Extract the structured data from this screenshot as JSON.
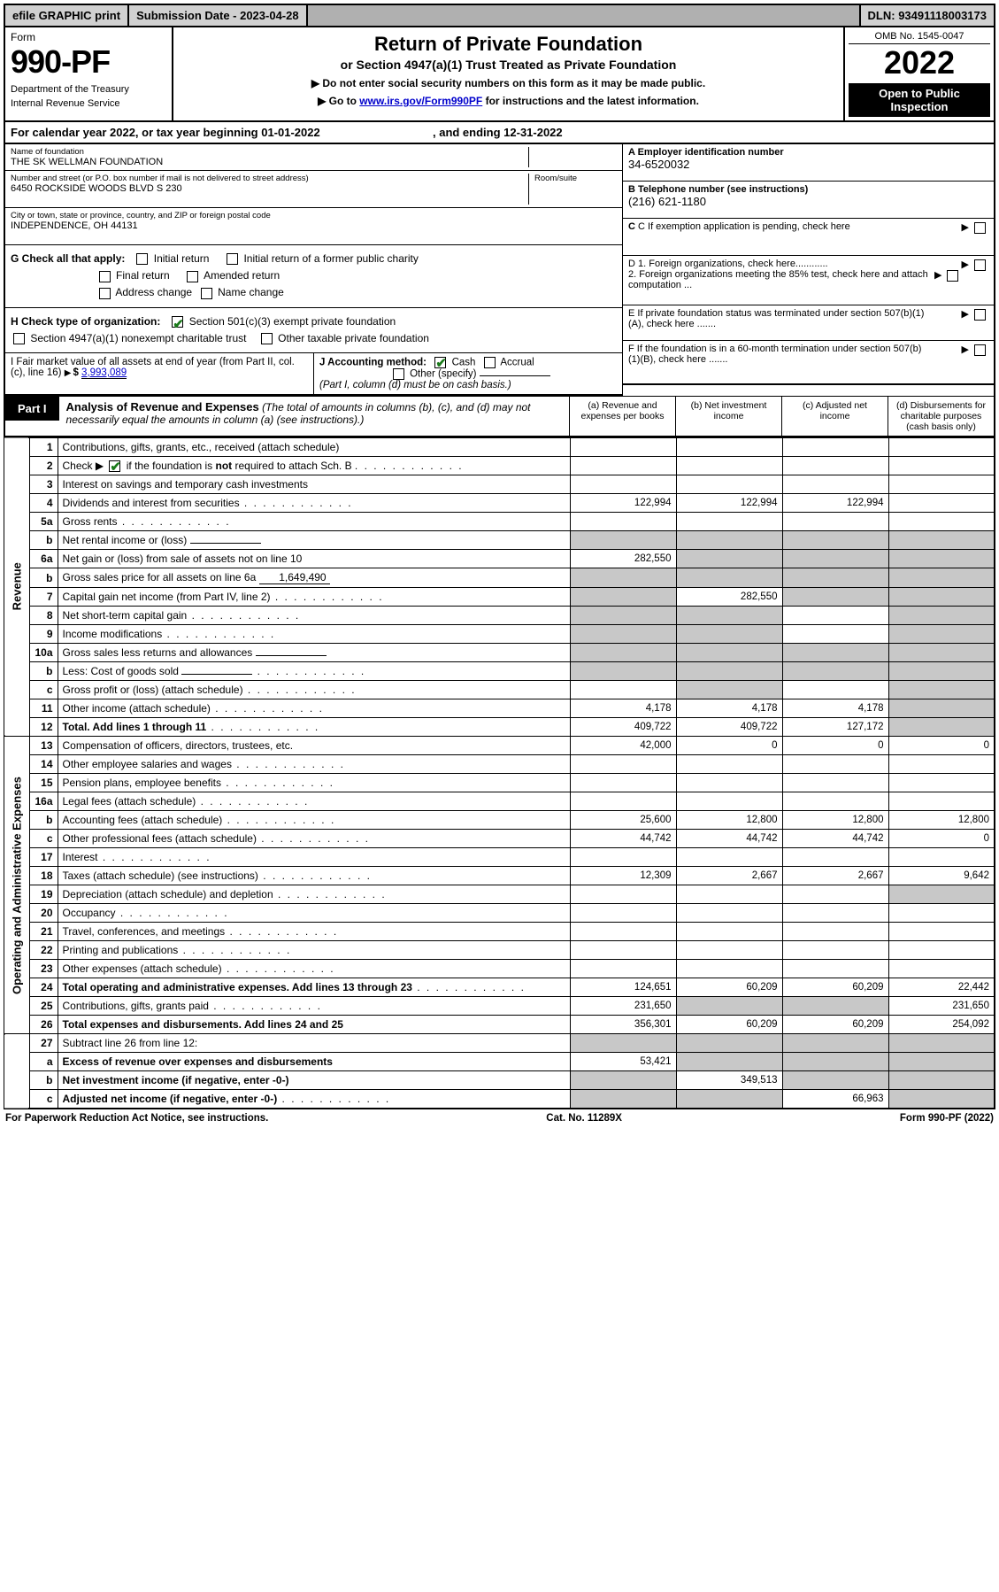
{
  "topbar": {
    "efile": "efile GRAPHIC print",
    "sub_date_label": "Submission Date - 2023-04-28",
    "dln": "DLN: 93491118003173"
  },
  "header": {
    "form_word": "Form",
    "form_no": "990-PF",
    "dept": "Department of the Treasury",
    "irs": "Internal Revenue Service",
    "title": "Return of Private Foundation",
    "subtitle": "or Section 4947(a)(1) Trust Treated as Private Foundation",
    "note1": "▶ Do not enter social security numbers on this form as it may be made public.",
    "note2a": "▶ Go to ",
    "note2_link": "www.irs.gov/Form990PF",
    "note2b": " for instructions and the latest information.",
    "omb": "OMB No. 1545-0047",
    "year": "2022",
    "open": "Open to Public Inspection"
  },
  "calyear": {
    "text_a": "For calendar year 2022, or tax year beginning 01-01-2022",
    "text_b": ", and ending 12-31-2022"
  },
  "id": {
    "name_lbl": "Name of foundation",
    "name": "THE SK WELLMAN FOUNDATION",
    "addr_lbl": "Number and street (or P.O. box number if mail is not delivered to street address)",
    "addr": "6450 ROCKSIDE WOODS BLVD S 230",
    "room_lbl": "Room/suite",
    "city_lbl": "City or town, state or province, country, and ZIP or foreign postal code",
    "city": "INDEPENDENCE, OH  44131",
    "ein_lbl": "A Employer identification number",
    "ein": "34-6520032",
    "tel_lbl": "B Telephone number (see instructions)",
    "tel": "(216) 621-1180",
    "c_lbl": "C If exemption application is pending, check here",
    "d1": "D 1. Foreign organizations, check here............",
    "d2": "2. Foreign organizations meeting the 85% test, check here and attach computation ...",
    "e": "E  If private foundation status was terminated under section 507(b)(1)(A), check here .......",
    "f": "F  If the foundation is in a 60-month termination under section 507(b)(1)(B), check here .......",
    "g_lbl": "G Check all that apply:",
    "g_opts": [
      "Initial return",
      "Final return",
      "Address change",
      "Initial return of a former public charity",
      "Amended return",
      "Name change"
    ],
    "h_lbl": "H Check type of organization:",
    "h_opts": [
      "Section 501(c)(3) exempt private foundation",
      "Section 4947(a)(1) nonexempt charitable trust",
      "Other taxable private foundation"
    ],
    "i_lbl": "I Fair market value of all assets at end of year (from Part II, col. (c), line 16)",
    "i_val": "3,993,089",
    "j_lbl": "J Accounting method:",
    "j_cash": "Cash",
    "j_accr": "Accrual",
    "j_other": "Other (specify)",
    "j_note": "(Part I, column (d) must be on cash basis.)"
  },
  "part1": {
    "tab": "Part I",
    "title": "Analysis of Revenue and Expenses",
    "title_note": "(The total of amounts in columns (b), (c), and (d) may not necessarily equal the amounts in column (a) (see instructions).)",
    "col_a": "(a)   Revenue and expenses per books",
    "col_b": "(b)   Net investment income",
    "col_c": "(c)  Adjusted net income",
    "col_d": "(d)   Disbursements for charitable purposes (cash basis only)",
    "side_rev": "Revenue",
    "side_exp": "Operating and Administrative Expenses"
  },
  "rows": [
    {
      "ln": "1",
      "desc": "Contributions, gifts, grants, etc., received (attach schedule)",
      "a": "",
      "b": "",
      "c": "",
      "d": ""
    },
    {
      "ln": "2",
      "desc": "Check ▶ ☑ if the foundation is not required to attach Sch. B",
      "a": "",
      "b": "",
      "c": "",
      "d": "",
      "dots": true
    },
    {
      "ln": "3",
      "desc": "Interest on savings and temporary cash investments",
      "a": "",
      "b": "",
      "c": "",
      "d": ""
    },
    {
      "ln": "4",
      "desc": "Dividends and interest from securities",
      "a": "122,994",
      "b": "122,994",
      "c": "122,994",
      "d": "",
      "dots": true
    },
    {
      "ln": "5a",
      "desc": "Gross rents",
      "a": "",
      "b": "",
      "c": "",
      "d": "",
      "dots": true
    },
    {
      "ln": "b",
      "desc": "Net rental income or (loss)",
      "a": "",
      "b": "",
      "c": "",
      "d": "",
      "inline": true,
      "shadeA": true,
      "shadeB": true,
      "shadeC": true,
      "shadeD": true
    },
    {
      "ln": "6a",
      "desc": "Net gain or (loss) from sale of assets not on line 10",
      "a": "282,550",
      "b": "",
      "c": "",
      "d": "",
      "shadeB": true,
      "shadeC": true,
      "shadeD": true
    },
    {
      "ln": "b",
      "desc": "Gross sales price for all assets on line 6a",
      "a": "",
      "b": "",
      "c": "",
      "d": "",
      "inline": true,
      "inlineval": "1,649,490",
      "shadeA": true,
      "shadeB": true,
      "shadeC": true,
      "shadeD": true
    },
    {
      "ln": "7",
      "desc": "Capital gain net income (from Part IV, line 2)",
      "a": "",
      "b": "282,550",
      "c": "",
      "d": "",
      "dots": true,
      "shadeA": true,
      "shadeC": true,
      "shadeD": true
    },
    {
      "ln": "8",
      "desc": "Net short-term capital gain",
      "a": "",
      "b": "",
      "c": "",
      "d": "",
      "dots": true,
      "shadeA": true,
      "shadeB": true,
      "shadeD": true
    },
    {
      "ln": "9",
      "desc": "Income modifications",
      "a": "",
      "b": "",
      "c": "",
      "d": "",
      "dots": true,
      "shadeA": true,
      "shadeB": true,
      "shadeD": true
    },
    {
      "ln": "10a",
      "desc": "Gross sales less returns and allowances",
      "a": "",
      "b": "",
      "c": "",
      "d": "",
      "inline": true,
      "shadeA": true,
      "shadeB": true,
      "shadeC": true,
      "shadeD": true
    },
    {
      "ln": "b",
      "desc": "Less: Cost of goods sold",
      "a": "",
      "b": "",
      "c": "",
      "d": "",
      "inline": true,
      "dots": true,
      "shadeA": true,
      "shadeB": true,
      "shadeC": true,
      "shadeD": true
    },
    {
      "ln": "c",
      "desc": "Gross profit or (loss) (attach schedule)",
      "a": "",
      "b": "",
      "c": "",
      "d": "",
      "dots": true,
      "shadeB": true,
      "shadeD": true
    },
    {
      "ln": "11",
      "desc": "Other income (attach schedule)",
      "a": "4,178",
      "b": "4,178",
      "c": "4,178",
      "d": "",
      "dots": true,
      "shadeD": true
    },
    {
      "ln": "12",
      "desc": "Total. Add lines 1 through 11",
      "a": "409,722",
      "b": "409,722",
      "c": "127,172",
      "d": "",
      "dots": true,
      "bold": true,
      "shadeD": true
    },
    {
      "ln": "13",
      "desc": "Compensation of officers, directors, trustees, etc.",
      "a": "42,000",
      "b": "0",
      "c": "0",
      "d": "0",
      "sec": "exp"
    },
    {
      "ln": "14",
      "desc": "Other employee salaries and wages",
      "a": "",
      "b": "",
      "c": "",
      "d": "",
      "dots": true
    },
    {
      "ln": "15",
      "desc": "Pension plans, employee benefits",
      "a": "",
      "b": "",
      "c": "",
      "d": "",
      "dots": true
    },
    {
      "ln": "16a",
      "desc": "Legal fees (attach schedule)",
      "a": "",
      "b": "",
      "c": "",
      "d": "",
      "dots": true
    },
    {
      "ln": "b",
      "desc": "Accounting fees (attach schedule)",
      "a": "25,600",
      "b": "12,800",
      "c": "12,800",
      "d": "12,800",
      "dots": true
    },
    {
      "ln": "c",
      "desc": "Other professional fees (attach schedule)",
      "a": "44,742",
      "b": "44,742",
      "c": "44,742",
      "d": "0",
      "dots": true
    },
    {
      "ln": "17",
      "desc": "Interest",
      "a": "",
      "b": "",
      "c": "",
      "d": "",
      "dots": true
    },
    {
      "ln": "18",
      "desc": "Taxes (attach schedule) (see instructions)",
      "a": "12,309",
      "b": "2,667",
      "c": "2,667",
      "d": "9,642",
      "dots": true
    },
    {
      "ln": "19",
      "desc": "Depreciation (attach schedule) and depletion",
      "a": "",
      "b": "",
      "c": "",
      "d": "",
      "dots": true,
      "shadeD": true
    },
    {
      "ln": "20",
      "desc": "Occupancy",
      "a": "",
      "b": "",
      "c": "",
      "d": "",
      "dots": true
    },
    {
      "ln": "21",
      "desc": "Travel, conferences, and meetings",
      "a": "",
      "b": "",
      "c": "",
      "d": "",
      "dots": true
    },
    {
      "ln": "22",
      "desc": "Printing and publications",
      "a": "",
      "b": "",
      "c": "",
      "d": "",
      "dots": true
    },
    {
      "ln": "23",
      "desc": "Other expenses (attach schedule)",
      "a": "",
      "b": "",
      "c": "",
      "d": "",
      "dots": true
    },
    {
      "ln": "24",
      "desc": "Total operating and administrative expenses. Add lines 13 through 23",
      "a": "124,651",
      "b": "60,209",
      "c": "60,209",
      "d": "22,442",
      "dots": true,
      "bold": true
    },
    {
      "ln": "25",
      "desc": "Contributions, gifts, grants paid",
      "a": "231,650",
      "b": "",
      "c": "",
      "d": "231,650",
      "dots": true,
      "shadeB": true,
      "shadeC": true
    },
    {
      "ln": "26",
      "desc": "Total expenses and disbursements. Add lines 24 and 25",
      "a": "356,301",
      "b": "60,209",
      "c": "60,209",
      "d": "254,092",
      "bold": true
    },
    {
      "ln": "27",
      "desc": "Subtract line 26 from line 12:",
      "a": "",
      "b": "",
      "c": "",
      "d": "",
      "shadeA": true,
      "shadeB": true,
      "shadeC": true,
      "shadeD": true,
      "sec": "final"
    },
    {
      "ln": "a",
      "desc": "Excess of revenue over expenses and disbursements",
      "a": "53,421",
      "b": "",
      "c": "",
      "d": "",
      "bold": true,
      "shadeB": true,
      "shadeC": true,
      "shadeD": true
    },
    {
      "ln": "b",
      "desc": "Net investment income (if negative, enter -0-)",
      "a": "",
      "b": "349,513",
      "c": "",
      "d": "",
      "bold": true,
      "shadeA": true,
      "shadeC": true,
      "shadeD": true
    },
    {
      "ln": "c",
      "desc": "Adjusted net income (if negative, enter -0-)",
      "a": "",
      "b": "",
      "c": "66,963",
      "d": "",
      "bold": true,
      "dots": true,
      "shadeA": true,
      "shadeB": true,
      "shadeD": true
    }
  ],
  "footer": {
    "left": "For Paperwork Reduction Act Notice, see instructions.",
    "mid": "Cat. No. 11289X",
    "right": "Form 990-PF (2022)"
  }
}
